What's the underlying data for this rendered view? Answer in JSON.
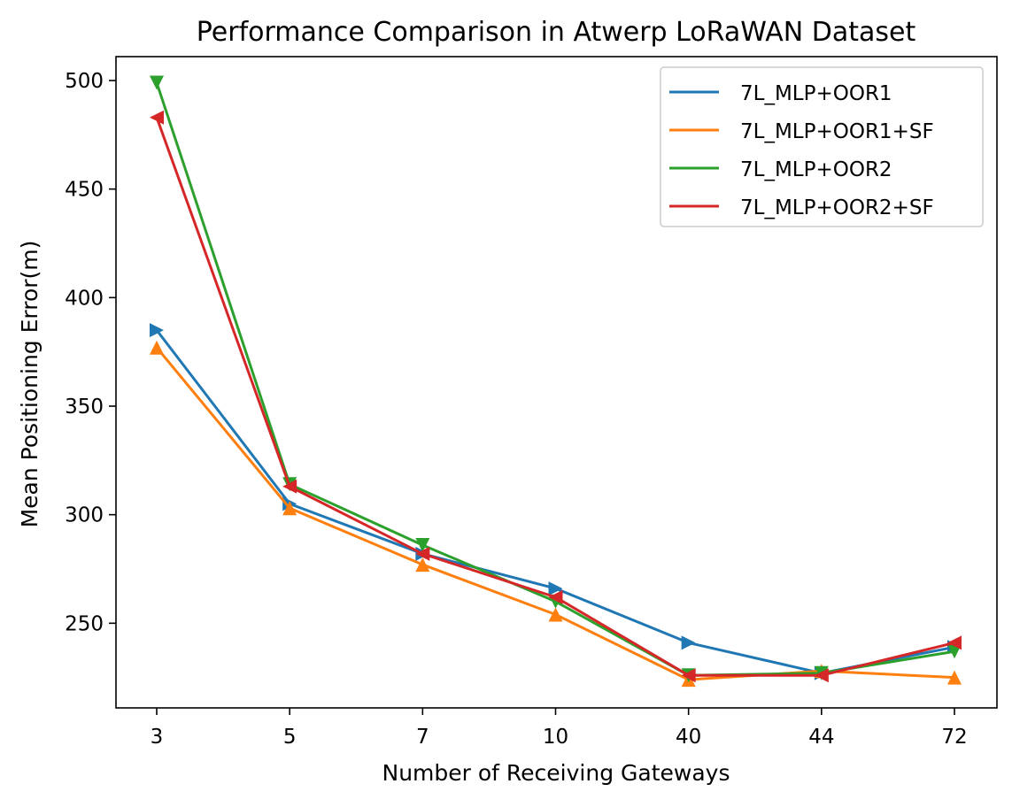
{
  "chart_data": {
    "type": "line",
    "title": "Performance Comparison in Atwerp LoRaWAN Dataset",
    "xlabel": "Number of Receiving Gateways",
    "ylabel": "Mean Positioning Error(m)",
    "categories": [
      "3",
      "5",
      "7",
      "10",
      "40",
      "44",
      "72"
    ],
    "ylim": [
      211,
      511
    ],
    "yticks": [
      250,
      300,
      350,
      400,
      450,
      500
    ],
    "grid": false,
    "legend_position": "top-right",
    "series": [
      {
        "name": "7L_MLP+OOR1",
        "color": "#1f77b4",
        "marker": "triangle-right",
        "values": [
          385,
          305,
          282,
          266,
          241,
          227,
          239
        ]
      },
      {
        "name": "7L_MLP+OOR1+SF",
        "color": "#ff7f0e",
        "marker": "triangle-up",
        "values": [
          377,
          303,
          277,
          254,
          224,
          228,
          225
        ]
      },
      {
        "name": "7L_MLP+OOR2",
        "color": "#2ca02c",
        "marker": "triangle-down",
        "values": [
          499,
          314,
          286,
          260,
          226,
          227,
          237
        ]
      },
      {
        "name": "7L_MLP+OOR2+SF",
        "color": "#d62728",
        "marker": "triangle-left",
        "values": [
          483,
          313,
          282,
          262,
          226,
          226,
          241
        ]
      }
    ]
  }
}
